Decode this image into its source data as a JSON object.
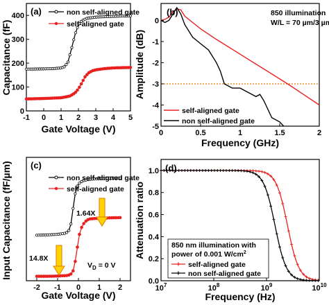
{
  "colors": {
    "black": "#000000",
    "red": "#e8201f",
    "orange": "#e07b00",
    "yellow": "#ffd200"
  },
  "panels": {
    "a": {
      "tag": "(a)",
      "xlabel": "Gate Voltage (V)",
      "ylabel": "Capacitance (fF)",
      "xticks": [
        "-1",
        "0",
        "1",
        "2",
        "3",
        "4",
        "5"
      ],
      "yticks": [
        "0",
        "100",
        "200",
        "300",
        "400"
      ]
    },
    "b": {
      "tag": "(b)",
      "xlabel": "Frequency (GHz)",
      "ylabel": "Amplitude (dB)",
      "note1": "850 illumination",
      "note2": "W/L = 70 µm/3 µm",
      "xticks": [
        "0",
        "0.5",
        "1",
        "1.5",
        "2"
      ],
      "yticks": [
        "0",
        "-1",
        "-2",
        "-3",
        "-4",
        "-5"
      ]
    },
    "c": {
      "tag": "(c)",
      "xlabel": "Gate Voltage (V)",
      "ylabel": "Input Capacitance (fF/µm)",
      "xticks": [
        "-2",
        "-1",
        "0",
        "1",
        "2"
      ],
      "ann1": "1.64X",
      "ann2": "14.8X",
      "vd": "V_D = 0 V"
    },
    "d": {
      "tag": "(d)",
      "xlabel": "Frequency (Hz)",
      "ylabel": "Attenuation ratio",
      "xticks": [
        "10^7",
        "10^8",
        "10^9",
        "10^10"
      ],
      "yticks": [
        "0.0",
        "0.2",
        "0.4",
        "0.6",
        "0.8",
        "1.0"
      ],
      "note1": "850 nm illumination with",
      "note2": "power of 0.001 W/cm²"
    }
  },
  "chart_data": [
    {
      "type": "line",
      "panel": "a",
      "xlabel": "Gate Voltage (V)",
      "ylabel": "Capacitance (fF)",
      "xlim": [
        -1,
        5
      ],
      "ylim": [
        0,
        450
      ],
      "legend": "top",
      "series": [
        {
          "name": "non self-aligned gate",
          "color": "#000000",
          "x": [
            -1,
            0,
            0.5,
            1.0,
            1.2,
            1.4,
            1.6,
            1.8,
            2.0,
            2.2,
            2.5,
            3,
            4,
            5
          ],
          "y": [
            175,
            176,
            177,
            180,
            185,
            205,
            260,
            320,
            360,
            378,
            388,
            393,
            396,
            398
          ]
        },
        {
          "name": "self-aligned gate",
          "color": "#e8201f",
          "x": [
            -1,
            0,
            1.0,
            1.5,
            1.8,
            2.0,
            2.2,
            2.4,
            2.6,
            2.8,
            3.0,
            3.5,
            4,
            5
          ],
          "y": [
            50,
            52,
            55,
            62,
            75,
            92,
            118,
            145,
            160,
            168,
            172,
            177,
            180,
            182
          ]
        }
      ]
    },
    {
      "type": "line",
      "panel": "b",
      "xlabel": "Frequency (GHz)",
      "ylabel": "Amplitude (dB)",
      "xlim": [
        0,
        2
      ],
      "ylim": [
        -5,
        0.8
      ],
      "legend": "bottom-left",
      "reference_line_db": -3,
      "series": [
        {
          "name": "self-aligned gate",
          "color": "#e8201f",
          "x": [
            0,
            0.05,
            0.1,
            0.15,
            0.2,
            0.25,
            0.3,
            0.4,
            0.5,
            0.7,
            1.0,
            1.3,
            1.6,
            1.8,
            2.0
          ],
          "y": [
            0,
            0.05,
            0.15,
            0.4,
            0.55,
            0.5,
            0.2,
            -0.1,
            -0.4,
            -0.9,
            -1.6,
            -2.3,
            -3.0,
            -3.5,
            -4.0
          ]
        },
        {
          "name": "non self-aligned gate",
          "color": "#000000",
          "x": [
            0,
            0.05,
            0.1,
            0.15,
            0.2,
            0.25,
            0.3,
            0.4,
            0.5,
            0.6,
            0.7,
            0.75,
            0.8,
            0.85,
            0.9,
            1.0,
            1.1,
            1.2,
            1.25,
            1.3,
            1.4,
            1.5,
            1.55
          ],
          "y": [
            0,
            -0.1,
            0.0,
            0.3,
            0.6,
            0.3,
            -0.2,
            -0.8,
            -1.1,
            -1.4,
            -2.0,
            -2.4,
            -3.0,
            -3.1,
            -3.2,
            -3.2,
            -3.4,
            -3.6,
            -3.5,
            -3.8,
            -4.6,
            -4.8,
            -5.0
          ]
        }
      ]
    },
    {
      "type": "line",
      "panel": "c",
      "xlabel": "Gate Voltage (V)",
      "ylabel": "Input Capacitance (fF/µm)",
      "xlim": [
        -2.5,
        2.5
      ],
      "legend": "top-left",
      "series": [
        {
          "name": "non self-aligned gate",
          "color": "#000000",
          "x": [
            -2,
            -1.5,
            -1,
            -0.6,
            -0.4,
            -0.3,
            -0.2,
            -0.1,
            0,
            0.2,
            0.5,
            1,
            1.5,
            2
          ],
          "y": [
            15.5,
            15.6,
            15.8,
            16.2,
            17.5,
            22,
            28,
            31.5,
            33,
            34,
            34.5,
            34.8,
            34.9,
            35
          ]
        },
        {
          "name": "self-aligned gate",
          "color": "#e8201f",
          "x": [
            -2,
            -1.5,
            -1,
            -0.5,
            -0.3,
            -0.2,
            -0.1,
            0,
            0.1,
            0.3,
            0.5,
            1,
            1.5,
            2
          ],
          "y": [
            1.5,
            1.5,
            1.6,
            1.8,
            2.5,
            4.5,
            9,
            14,
            17.5,
            20,
            21,
            21.3,
            21.4,
            21.5
          ]
        }
      ]
    },
    {
      "type": "line",
      "panel": "d",
      "xlabel": "Frequency (Hz)",
      "ylabel": "Attenuation ratio",
      "xscale": "log",
      "xlim": [
        10000000.0,
        10000000000.0
      ],
      "ylim": [
        0,
        1.1
      ],
      "legend": "bottom-left",
      "series": [
        {
          "name": "self-aligned gate",
          "color": "#e8201f",
          "cutoff_hz": 2500000000.0,
          "order": 2
        },
        {
          "name": "non self-aligned gate",
          "color": "#000000",
          "cutoff_hz": 1450000000.0,
          "order": 2
        }
      ]
    }
  ]
}
